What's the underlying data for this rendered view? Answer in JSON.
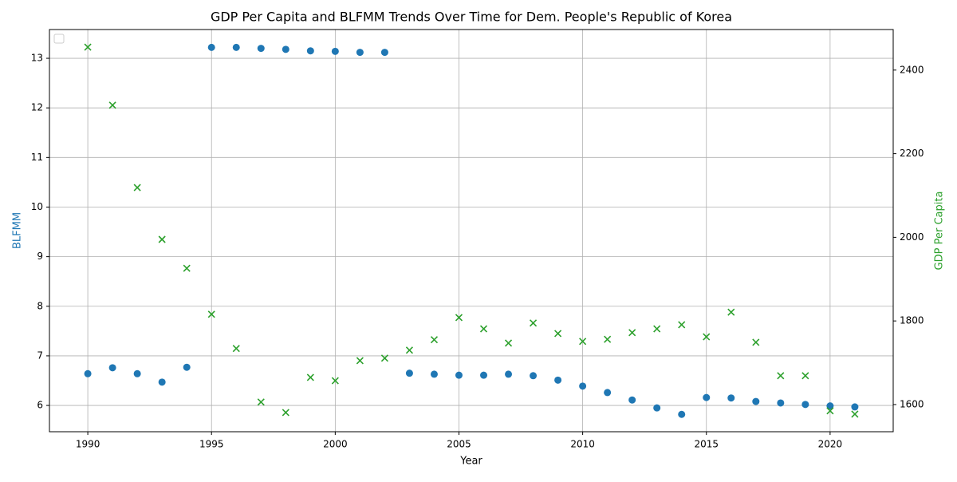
{
  "chart_data": {
    "type": "scatter",
    "title": "GDP Per Capita and BLFMM Trends Over Time for Dem. People's Republic of Korea",
    "xlabel": "Year",
    "ylabel": "BLFMM",
    "y2label": "GDP Per Capita",
    "x": [
      1990,
      1991,
      1992,
      1993,
      1994,
      1995,
      1996,
      1997,
      1998,
      1999,
      2000,
      2001,
      2002,
      2003,
      2004,
      2005,
      2006,
      2007,
      2008,
      2009,
      2010,
      2011,
      2012,
      2013,
      2014,
      2015,
      2016,
      2017,
      2018,
      2019,
      2020,
      2021
    ],
    "series": [
      {
        "color": "#1f77b4",
        "marker": "o",
        "axis": "y",
        "values": [
          6.64,
          6.76,
          6.64,
          6.47,
          6.77,
          13.22,
          13.22,
          13.2,
          13.18,
          13.15,
          13.14,
          13.12,
          13.12,
          6.65,
          6.63,
          6.61,
          6.61,
          6.63,
          6.6,
          6.51,
          6.39,
          6.26,
          6.11,
          5.95,
          5.82,
          6.16,
          6.15,
          6.08,
          6.05,
          6.02,
          5.99,
          5.97
        ]
      },
      {
        "color": "#2ca02c",
        "marker": "x",
        "axis": "y2",
        "values": [
          2455,
          2316,
          2119,
          1995,
          1926,
          1816,
          1734,
          1606,
          1581,
          1665,
          1657,
          1705,
          1711,
          1730,
          1755,
          1808,
          1781,
          1747,
          1795,
          1770,
          1751,
          1756,
          1772,
          1781,
          1791,
          1762,
          1821,
          1749,
          1669,
          1669,
          1585,
          1577
        ]
      }
    ],
    "xlim": [
      1988.45,
      2022.55
    ],
    "xticks": [
      1990,
      1995,
      2000,
      2005,
      2010,
      2015,
      2020
    ],
    "ylim": [
      5.47,
      13.58
    ],
    "yticks": [
      6,
      7,
      8,
      9,
      10,
      11,
      12,
      13
    ],
    "y2lim": [
      1535,
      2497
    ],
    "y2ticks": [
      1600,
      1800,
      2000,
      2200,
      2400
    ],
    "grid": true,
    "legend": "upper left"
  }
}
